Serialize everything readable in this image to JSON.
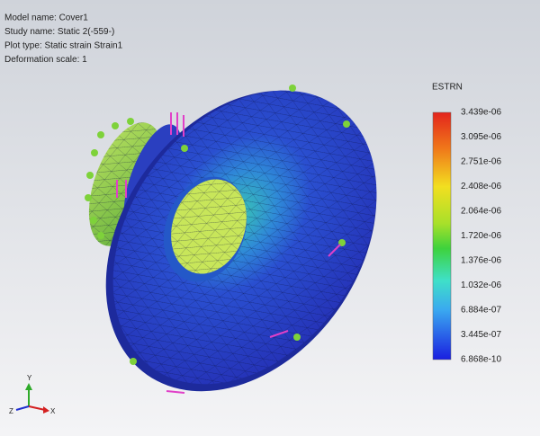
{
  "info": [
    "Model name: Cover1",
    "Study name: Static 2(-559-)",
    "Plot type: Static strain Strain1",
    "Deformation scale: 1"
  ],
  "legend": {
    "title": "ESTRN",
    "labels": [
      "3.439e-06",
      "3.095e-06",
      "2.751e-06",
      "2.408e-06",
      "2.064e-06",
      "1.720e-06",
      "1.376e-06",
      "1.032e-06",
      "6.884e-07",
      "3.445e-07",
      "6.868e-10"
    ]
  },
  "triad": {
    "x": "X",
    "y": "Y",
    "z": "Z"
  }
}
